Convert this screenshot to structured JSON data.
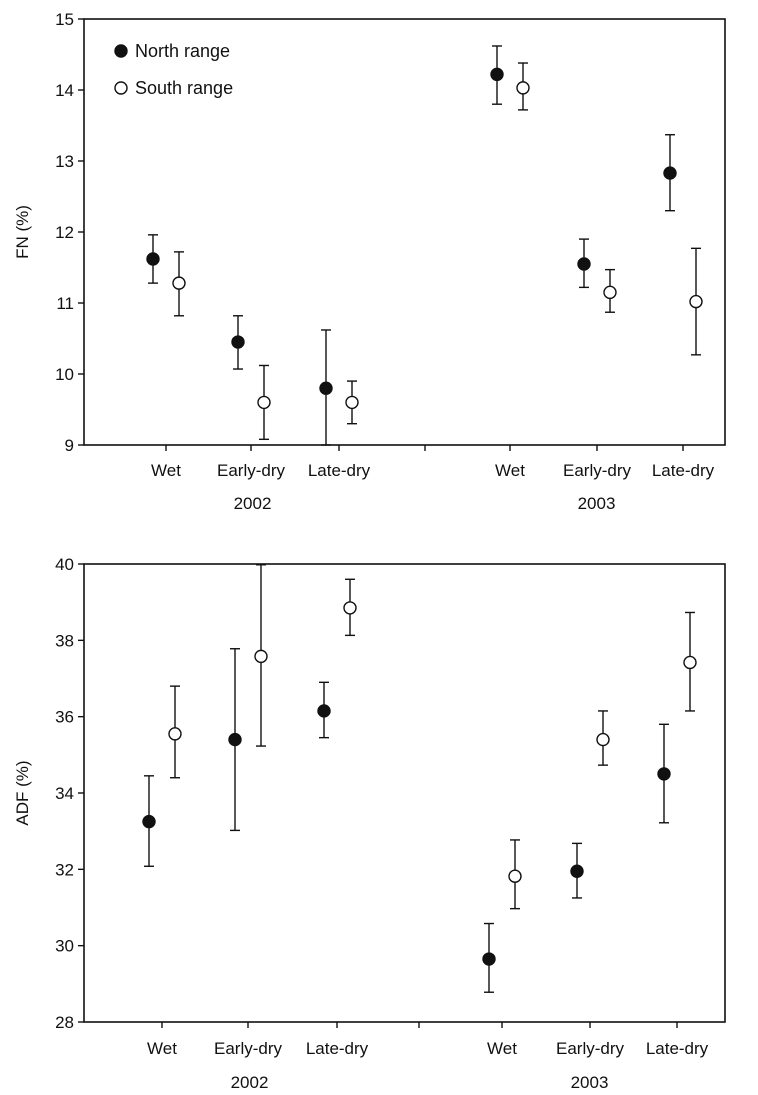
{
  "legend": [
    {
      "key": "north",
      "label": "North range",
      "marker": "filled"
    },
    {
      "key": "south",
      "label": "South range",
      "marker": "open"
    }
  ],
  "colors": {
    "axis": "#111111",
    "filled_marker": "#111111",
    "open_marker": "#ffffff"
  },
  "chart_data": [
    {
      "type": "scatter",
      "ylabel": "FN (%)",
      "ylim": [
        9,
        15
      ],
      "yticks": [
        9,
        10,
        11,
        12,
        13,
        14,
        15
      ],
      "categories": [
        "Wet",
        "Early-dry",
        "Late-dry",
        "Wet",
        "Early-dry",
        "Late-dry"
      ],
      "groups": [
        {
          "label": "2002",
          "start": 0,
          "end": 2
        },
        {
          "label": "2003",
          "start": 3,
          "end": 5
        }
      ],
      "series": [
        {
          "name": "North range",
          "key": "north",
          "values": [
            11.62,
            10.45,
            9.8,
            14.22,
            11.55,
            12.83
          ],
          "low": [
            11.28,
            10.07,
            9.0,
            13.8,
            11.22,
            12.3
          ],
          "high": [
            11.96,
            10.82,
            10.62,
            14.62,
            11.9,
            13.37
          ]
        },
        {
          "name": "South range",
          "key": "south",
          "values": [
            11.28,
            9.6,
            9.6,
            14.03,
            11.15,
            11.02
          ],
          "low": [
            10.82,
            9.08,
            9.3,
            13.72,
            10.87,
            10.27
          ],
          "high": [
            11.72,
            10.12,
            9.9,
            14.38,
            11.47,
            11.77
          ]
        }
      ]
    },
    {
      "type": "scatter",
      "ylabel": "ADF (%)",
      "ylim": [
        28,
        40
      ],
      "yticks": [
        28,
        30,
        32,
        34,
        36,
        38,
        40
      ],
      "categories": [
        "Wet",
        "Early-dry",
        "Late-dry",
        "Wet",
        "Early-dry",
        "Late-dry"
      ],
      "groups": [
        {
          "label": "2002",
          "start": 0,
          "end": 2
        },
        {
          "label": "2003",
          "start": 3,
          "end": 5
        }
      ],
      "series": [
        {
          "name": "North range",
          "key": "north",
          "values": [
            33.25,
            35.4,
            36.15,
            29.65,
            31.95,
            34.5
          ],
          "low": [
            32.08,
            33.02,
            35.45,
            28.78,
            31.25,
            33.22
          ],
          "high": [
            34.45,
            37.78,
            36.9,
            30.58,
            32.68,
            35.8
          ]
        },
        {
          "name": "South range",
          "key": "south",
          "values": [
            35.55,
            37.58,
            38.85,
            31.82,
            35.4,
            37.42
          ],
          "low": [
            34.4,
            35.23,
            38.13,
            30.97,
            34.73,
            36.15
          ],
          "high": [
            36.8,
            39.98,
            39.6,
            32.77,
            36.15,
            38.73
          ]
        }
      ]
    }
  ]
}
